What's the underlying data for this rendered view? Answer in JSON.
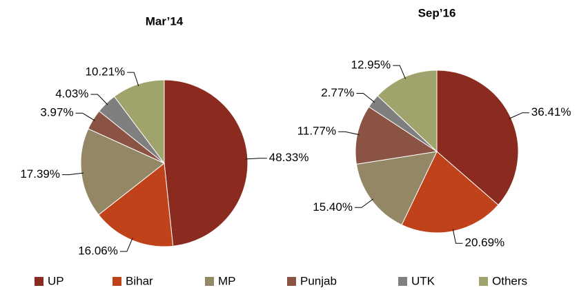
{
  "chart_data": [
    {
      "type": "pie",
      "title": "Mar’14",
      "categories": [
        "UP",
        "Bihar",
        "MP",
        "Punjab",
        "UTK",
        "Others"
      ],
      "values": [
        48.33,
        16.06,
        17.39,
        3.97,
        4.03,
        10.21
      ],
      "value_labels": [
        "48.33%",
        "16.06%",
        "17.39%",
        "3.97%",
        "4.03%",
        "10.21%"
      ],
      "colors": [
        "#8b2a1e",
        "#c0421a",
        "#948765",
        "#8b5344",
        "#7f7f7f",
        "#a0a36b"
      ],
      "legend": "bottom"
    },
    {
      "type": "pie",
      "title": "Sep’16",
      "categories": [
        "UP",
        "Bihar",
        "MP",
        "Punjab",
        "UTK",
        "Others"
      ],
      "values": [
        36.41,
        20.69,
        15.4,
        11.77,
        2.77,
        12.95
      ],
      "value_labels": [
        "36.41%",
        "20.69%",
        "15.40%",
        "11.77%",
        "2.77%",
        "12.95%"
      ],
      "colors": [
        "#8b2a1e",
        "#c0421a",
        "#948765",
        "#8b5344",
        "#7f7f7f",
        "#a0a36b"
      ],
      "legend": "bottom"
    }
  ]
}
